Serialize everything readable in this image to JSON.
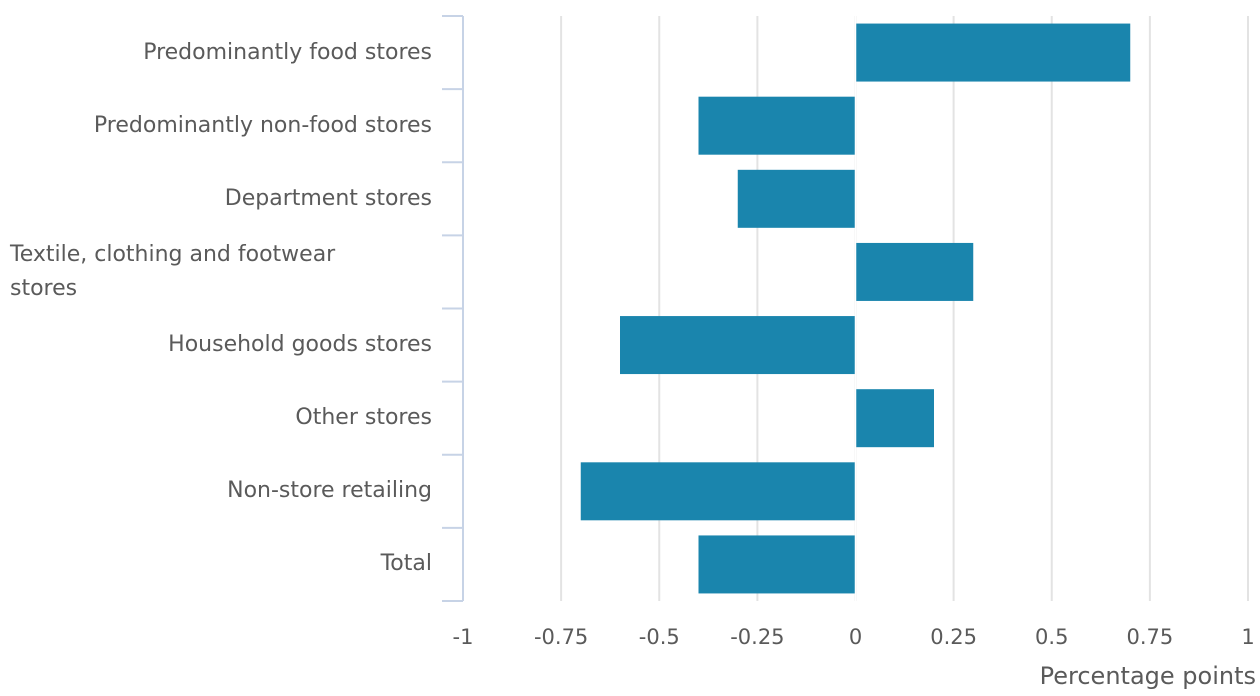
{
  "chart_data": {
    "type": "bar",
    "orientation": "horizontal",
    "categories": [
      "Predominantly food stores",
      "Predominantly non-food stores",
      "Department stores",
      "Textile, clothing and footwear stores",
      "Household goods stores",
      "Other stores",
      "Non-store retailing",
      "Total"
    ],
    "values": [
      0.7,
      -0.4,
      -0.3,
      0.3,
      -0.6,
      0.2,
      -0.7,
      -0.4
    ],
    "xlabel": "Percentage points",
    "ylabel": "",
    "xlim": [
      -1,
      1
    ],
    "xticks": [
      -1,
      -0.75,
      -0.5,
      -0.25,
      0,
      0.25,
      0.5,
      0.75,
      1
    ],
    "xtick_labels": [
      "-1",
      "-0.75",
      "-0.5",
      "-0.25",
      "0",
      "0.25",
      "0.5",
      "0.75",
      "1"
    ],
    "grid": "vertical",
    "bar_color": "#1a85ad",
    "grid_color": "#e3e3e3",
    "axis_color": "#c7d3e6"
  }
}
